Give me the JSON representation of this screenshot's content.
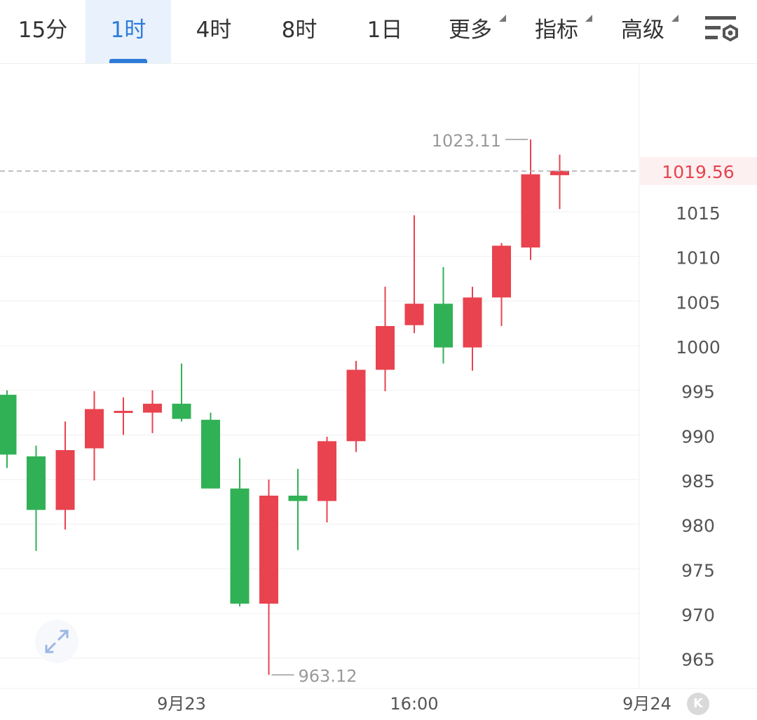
{
  "tabs": [
    {
      "label": "15分",
      "active": false,
      "dropdown": false
    },
    {
      "label": "1时",
      "active": true,
      "dropdown": false
    },
    {
      "label": "4时",
      "active": false,
      "dropdown": false
    },
    {
      "label": "8时",
      "active": false,
      "dropdown": false
    },
    {
      "label": "1日",
      "active": false,
      "dropdown": false
    },
    {
      "label": "更多",
      "active": false,
      "dropdown": true
    },
    {
      "label": "指标",
      "active": false,
      "dropdown": true
    },
    {
      "label": "高级",
      "active": false,
      "dropdown": true
    }
  ],
  "settings_icon": "chart-settings-icon",
  "colors": {
    "up": "#e8434f",
    "down": "#31b156",
    "grid": "#efefef",
    "axis_text": "#555555",
    "annotation": "#999999",
    "current_price": "#e8434f",
    "current_price_bg": "#fdf0f1",
    "active_tab": "#2d7bd8"
  },
  "chart_data": {
    "type": "candlestick",
    "interval": "1时",
    "y_ticks": [
      965,
      970,
      975,
      980,
      985,
      990,
      995,
      1000,
      1005,
      1010,
      1015
    ],
    "ylim": [
      961.6,
      1031.5
    ],
    "x_labels": [
      {
        "label": "9月23",
        "index": 6
      },
      {
        "label": "16:00",
        "index": 14
      },
      {
        "label": "9月24",
        "index": 22
      }
    ],
    "current_price": "1019.56",
    "high_label": "1023.11",
    "low_label": "963.12",
    "candles": [
      {
        "open": 994.5,
        "close": 987.8,
        "high": 995.0,
        "low": 986.3
      },
      {
        "open": 987.6,
        "close": 981.6,
        "high": 988.8,
        "low": 977.0
      },
      {
        "open": 981.6,
        "close": 988.3,
        "high": 991.5,
        "low": 979.4
      },
      {
        "open": 988.5,
        "close": 992.9,
        "high": 994.9,
        "low": 984.9
      },
      {
        "open": 992.7,
        "close": 992.7,
        "high": 994.2,
        "low": 990.0
      },
      {
        "open": 992.5,
        "close": 993.5,
        "high": 995.0,
        "low": 990.2
      },
      {
        "open": 993.5,
        "close": 991.8,
        "high": 998.0,
        "low": 991.5
      },
      {
        "open": 991.7,
        "close": 984.0,
        "high": 992.5,
        "low": 984.0
      },
      {
        "open": 984.0,
        "close": 971.1,
        "high": 987.4,
        "low": 970.8
      },
      {
        "open": 971.1,
        "close": 983.2,
        "high": 985.0,
        "low": 963.12
      },
      {
        "open": 983.2,
        "close": 982.6,
        "high": 986.2,
        "low": 977.1
      },
      {
        "open": 982.6,
        "close": 989.3,
        "high": 989.8,
        "low": 980.2
      },
      {
        "open": 989.3,
        "close": 997.3,
        "high": 998.3,
        "low": 988.1
      },
      {
        "open": 997.3,
        "close": 1002.2,
        "high": 1006.6,
        "low": 994.9
      },
      {
        "open": 1002.3,
        "close": 1004.7,
        "high": 1014.6,
        "low": 1001.4
      },
      {
        "open": 1004.7,
        "close": 999.8,
        "high": 1008.8,
        "low": 998.0
      },
      {
        "open": 999.8,
        "close": 1005.4,
        "high": 1006.6,
        "low": 997.2
      },
      {
        "open": 1005.4,
        "close": 1011.2,
        "high": 1011.5,
        "low": 1002.2
      },
      {
        "open": 1011.0,
        "close": 1019.2,
        "high": 1023.11,
        "low": 1009.6
      },
      {
        "open": 1019.1,
        "close": 1019.6,
        "high": 1021.4,
        "low": 1015.3
      }
    ]
  },
  "expand_icon": "expand-arrows-icon",
  "k_badge": "K"
}
